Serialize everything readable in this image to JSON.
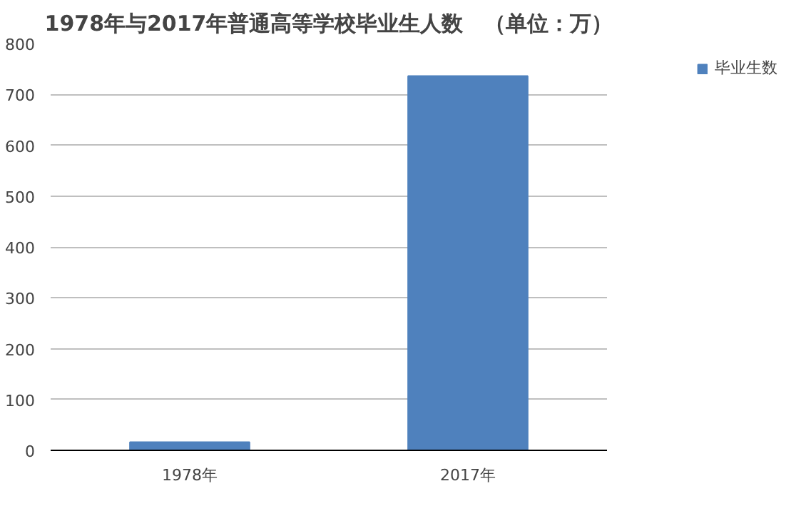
{
  "chart_data": {
    "type": "bar",
    "title": "1978年与2017年普通高等学校毕业生人数　（单位：万）",
    "categories": [
      "1978年",
      "2017年"
    ],
    "series": [
      {
        "name": "毕业生数",
        "color": "#4f81bd",
        "values": [
          16,
          736
        ]
      }
    ],
    "ylim": [
      0,
      800
    ],
    "yticks": [
      0,
      100,
      200,
      300,
      400,
      500,
      600,
      700,
      800
    ],
    "grid": "y",
    "legend": "right"
  }
}
